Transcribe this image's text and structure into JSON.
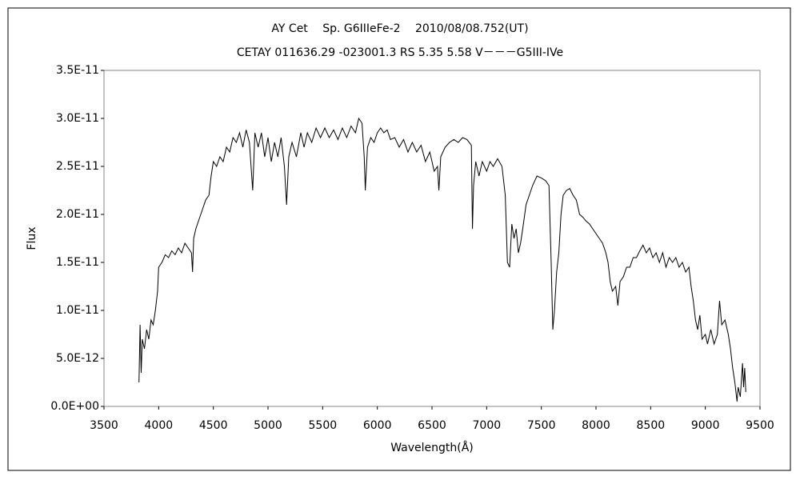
{
  "chart_data": {
    "type": "line",
    "title": "AY Cet　 Sp. G6IIIeFe-2　 2010/08/08.752(UT)",
    "subtitle": "CETAY 011636.29 -023001.3 RS 5.35 5.58 V－－－G5III-IVe",
    "xlabel": "Wavelength(Å)",
    "ylabel": "Flux",
    "color": "#000000",
    "grid": false,
    "xlim": [
      3500,
      9500
    ],
    "xticks": [
      3500,
      4000,
      4500,
      5000,
      5500,
      6000,
      6500,
      7000,
      7500,
      8000,
      8500,
      9000,
      9500
    ],
    "ylim": [
      0,
      3.5e-11
    ],
    "yticks": [
      {
        "value": 0,
        "label": "0.0E+00"
      },
      {
        "value": 5e-12,
        "label": "5.0E-12"
      },
      {
        "value": 1e-11,
        "label": "1.0E-11"
      },
      {
        "value": 1.5e-11,
        "label": "1.5E-11"
      },
      {
        "value": 2e-11,
        "label": "2.0E-11"
      },
      {
        "value": 2.5e-11,
        "label": "2.5E-11"
      },
      {
        "value": 3e-11,
        "label": "3.0E-11"
      },
      {
        "value": 3.5e-11,
        "label": "3.5E-11"
      }
    ],
    "x": [
      3820,
      3830,
      3840,
      3850,
      3870,
      3890,
      3910,
      3930,
      3950,
      3970,
      3990,
      4000,
      4030,
      4060,
      4090,
      4120,
      4150,
      4180,
      4210,
      4240,
      4270,
      4300,
      4310,
      4320,
      4340,
      4370,
      4400,
      4430,
      4460,
      4480,
      4500,
      4530,
      4560,
      4590,
      4620,
      4650,
      4680,
      4710,
      4740,
      4770,
      4800,
      4830,
      4860,
      4880,
      4910,
      4940,
      4970,
      5000,
      5030,
      5060,
      5090,
      5120,
      5150,
      5170,
      5190,
      5220,
      5260,
      5300,
      5330,
      5360,
      5400,
      5440,
      5480,
      5520,
      5560,
      5600,
      5640,
      5680,
      5720,
      5760,
      5800,
      5830,
      5860,
      5880,
      5890,
      5910,
      5940,
      5970,
      6000,
      6030,
      6060,
      6090,
      6120,
      6160,
      6200,
      6240,
      6280,
      6320,
      6360,
      6400,
      6440,
      6480,
      6520,
      6550,
      6563,
      6580,
      6620,
      6660,
      6700,
      6740,
      6780,
      6820,
      6860,
      6870,
      6880,
      6900,
      6930,
      6960,
      7000,
      7030,
      7060,
      7100,
      7140,
      7170,
      7190,
      7210,
      7230,
      7250,
      7270,
      7290,
      7310,
      7330,
      7360,
      7390,
      7420,
      7460,
      7500,
      7540,
      7570,
      7590,
      7605,
      7620,
      7640,
      7660,
      7680,
      7700,
      7730,
      7760,
      7790,
      7820,
      7850,
      7880,
      7910,
      7940,
      7970,
      8000,
      8030,
      8060,
      8090,
      8110,
      8130,
      8150,
      8180,
      8200,
      8220,
      8250,
      8280,
      8310,
      8340,
      8370,
      8400,
      8430,
      8460,
      8490,
      8520,
      8550,
      8580,
      8610,
      8640,
      8670,
      8700,
      8730,
      8760,
      8790,
      8820,
      8850,
      8870,
      8890,
      8910,
      8930,
      8950,
      8970,
      9000,
      9020,
      9050,
      9080,
      9110,
      9130,
      9150,
      9180,
      9210,
      9230,
      9250,
      9270,
      9290,
      9300,
      9320,
      9340,
      9350,
      9360,
      9370
    ],
    "values": [
      2.5e-12,
      8.5e-12,
      3.5e-12,
      7e-12,
      6e-12,
      8e-12,
      7e-12,
      9e-12,
      8.5e-12,
      1e-11,
      1.2e-11,
      1.45e-11,
      1.5e-11,
      1.58e-11,
      1.55e-11,
      1.62e-11,
      1.58e-11,
      1.65e-11,
      1.6e-11,
      1.7e-11,
      1.65e-11,
      1.6e-11,
      1.4e-11,
      1.75e-11,
      1.85e-11,
      1.95e-11,
      2.05e-11,
      2.15e-11,
      2.2e-11,
      2.4e-11,
      2.55e-11,
      2.5e-11,
      2.6e-11,
      2.55e-11,
      2.7e-11,
      2.65e-11,
      2.8e-11,
      2.75e-11,
      2.85e-11,
      2.7e-11,
      2.88e-11,
      2.75e-11,
      2.25e-11,
      2.85e-11,
      2.7e-11,
      2.85e-11,
      2.6e-11,
      2.8e-11,
      2.55e-11,
      2.75e-11,
      2.6e-11,
      2.8e-11,
      2.5e-11,
      2.1e-11,
      2.6e-11,
      2.75e-11,
      2.6e-11,
      2.85e-11,
      2.7e-11,
      2.85e-11,
      2.75e-11,
      2.9e-11,
      2.8e-11,
      2.9e-11,
      2.8e-11,
      2.88e-11,
      2.78e-11,
      2.9e-11,
      2.8e-11,
      2.92e-11,
      2.85e-11,
      3e-11,
      2.95e-11,
      2.6e-11,
      2.25e-11,
      2.7e-11,
      2.8e-11,
      2.75e-11,
      2.85e-11,
      2.9e-11,
      2.85e-11,
      2.88e-11,
      2.78e-11,
      2.8e-11,
      2.7e-11,
      2.78e-11,
      2.65e-11,
      2.75e-11,
      2.65e-11,
      2.72e-11,
      2.55e-11,
      2.65e-11,
      2.45e-11,
      2.5e-11,
      2.25e-11,
      2.6e-11,
      2.7e-11,
      2.75e-11,
      2.78e-11,
      2.75e-11,
      2.8e-11,
      2.78e-11,
      2.72e-11,
      1.85e-11,
      2.3e-11,
      2.55e-11,
      2.4e-11,
      2.55e-11,
      2.45e-11,
      2.55e-11,
      2.5e-11,
      2.58e-11,
      2.5e-11,
      2.2e-11,
      1.5e-11,
      1.45e-11,
      1.9e-11,
      1.75e-11,
      1.85e-11,
      1.6e-11,
      1.7e-11,
      1.85e-11,
      2.1e-11,
      2.2e-11,
      2.3e-11,
      2.4e-11,
      2.38e-11,
      2.35e-11,
      2.3e-11,
      1.5e-11,
      8e-12,
      1e-11,
      1.4e-11,
      1.6e-11,
      2e-11,
      2.2e-11,
      2.25e-11,
      2.27e-11,
      2.2e-11,
      2.15e-11,
      2e-11,
      1.97e-11,
      1.93e-11,
      1.9e-11,
      1.85e-11,
      1.8e-11,
      1.75e-11,
      1.7e-11,
      1.6e-11,
      1.5e-11,
      1.3e-11,
      1.2e-11,
      1.25e-11,
      1.05e-11,
      1.3e-11,
      1.35e-11,
      1.45e-11,
      1.45e-11,
      1.55e-11,
      1.55e-11,
      1.62e-11,
      1.68e-11,
      1.6e-11,
      1.65e-11,
      1.55e-11,
      1.6e-11,
      1.5e-11,
      1.6e-11,
      1.45e-11,
      1.55e-11,
      1.5e-11,
      1.55e-11,
      1.45e-11,
      1.5e-11,
      1.4e-11,
      1.45e-11,
      1.25e-11,
      1.1e-11,
      9e-12,
      8e-12,
      9.5e-12,
      7e-12,
      7.5e-12,
      6.5e-12,
      8e-12,
      6.5e-12,
      7.5e-12,
      1.1e-11,
      8.5e-12,
      9e-12,
      7.5e-12,
      6e-12,
      4e-12,
      2.5e-12,
      5e-13,
      2e-12,
      1e-12,
      4.5e-12,
      2e-12,
      4e-12,
      1.5e-12
    ]
  }
}
